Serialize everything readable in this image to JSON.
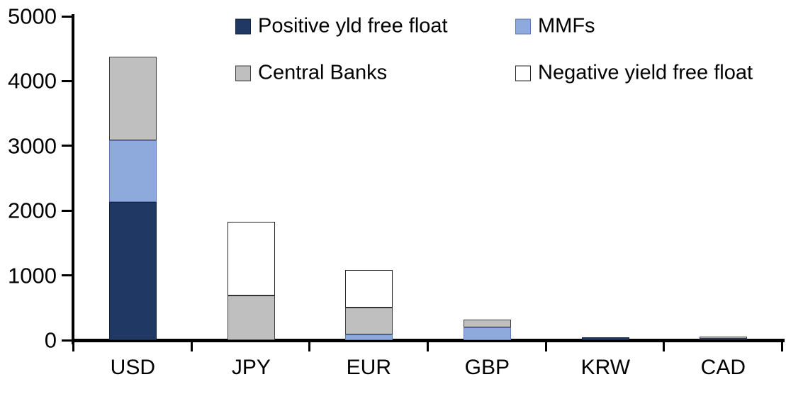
{
  "chart_data": {
    "type": "bar",
    "stacked": true,
    "title": "",
    "categories": [
      "USD",
      "JPY",
      "EUR",
      "GBP",
      "KRW",
      "CAD"
    ],
    "series": [
      {
        "name": "Positive yld free float",
        "color": "#1F3864",
        "border_color": "#14243E",
        "values": [
          2130,
          0,
          0,
          0,
          40,
          25
        ]
      },
      {
        "name": "MMFs",
        "color": "#8EA9DC",
        "border_color": "#5C7BB4",
        "values": [
          950,
          0,
          90,
          200,
          0,
          0
        ]
      },
      {
        "name": "Central Banks",
        "color": "#BFBFBF",
        "border_color": "#3F3F3F",
        "values": [
          1290,
          690,
          420,
          120,
          0,
          30
        ]
      },
      {
        "name": "Negative yield free float",
        "color": "#FFFFFF",
        "border_color": "#262626",
        "values": [
          0,
          1140,
          580,
          0,
          0,
          0
        ]
      }
    ],
    "xlabel": "",
    "ylabel": "",
    "ylim": [
      0,
      5000
    ],
    "yticks": [
      0,
      1000,
      2000,
      3000,
      4000,
      5000
    ],
    "grid": false,
    "legend_position": "top",
    "legend_columns": 2,
    "axis_color": "#000000",
    "text_color": "#000000"
  }
}
